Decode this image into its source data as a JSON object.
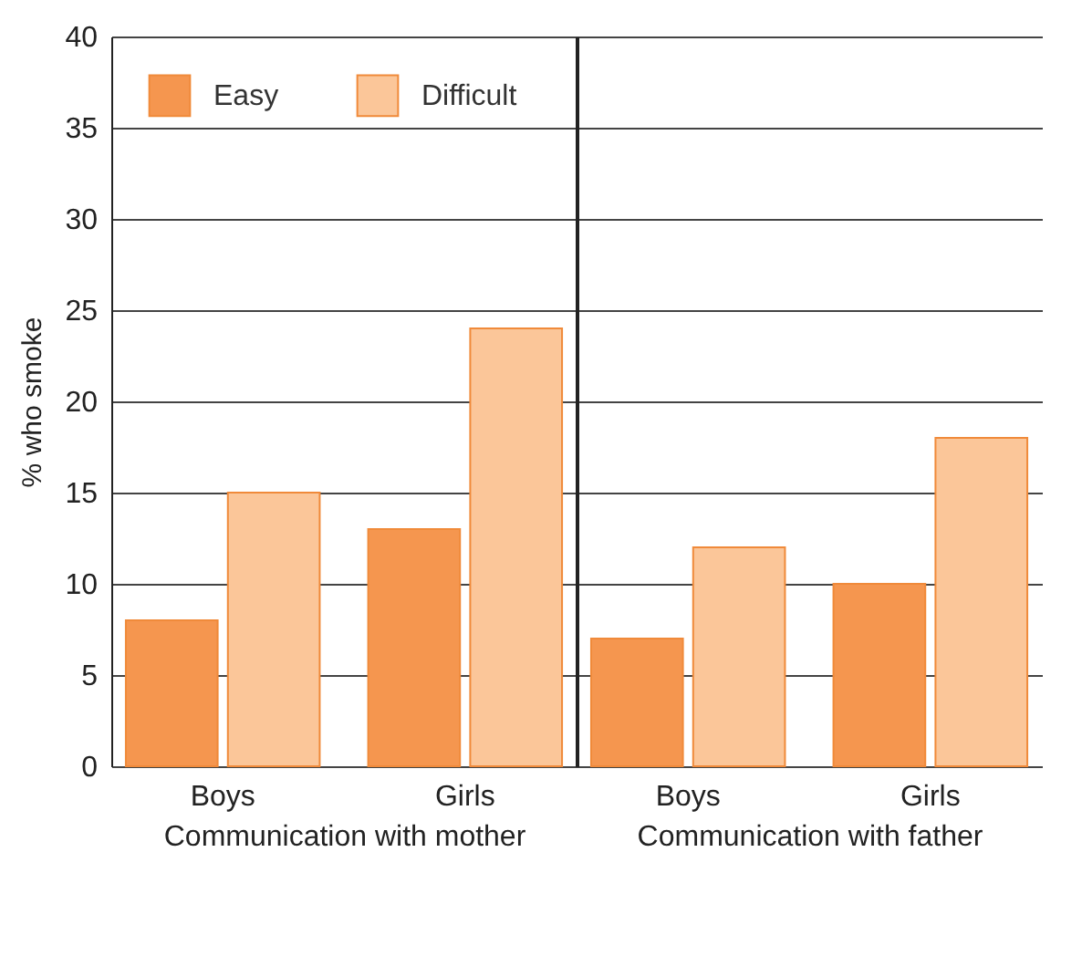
{
  "chart_data": [
    {
      "type": "bar",
      "categories": [
        "Boys",
        "Girls"
      ],
      "xlabel": "Communication with mother",
      "ylabel": "% who smoke",
      "ylim": [
        0,
        40
      ],
      "yticks": [
        0,
        5,
        10,
        15,
        20,
        25,
        30,
        35,
        40
      ],
      "grid": "y",
      "legend": "top left",
      "series": [
        {
          "name": "Easy",
          "color": "#f5964f",
          "values": [
            8,
            13
          ]
        },
        {
          "name": "Difficult",
          "color": "#fbc699",
          "values": [
            15,
            24
          ]
        }
      ]
    },
    {
      "type": "bar",
      "categories": [
        "Boys",
        "Girls"
      ],
      "xlabel": "Communication with father",
      "ylim": [
        0,
        40
      ],
      "yticks": [
        0,
        5,
        10,
        15,
        20,
        25,
        30,
        35,
        40
      ],
      "grid": "y",
      "tick_labels": "x",
      "series": [
        {
          "color": "#f5964f",
          "values": [
            7,
            10
          ]
        },
        {
          "color": "#fbc699",
          "values": [
            12,
            18
          ]
        }
      ]
    }
  ]
}
